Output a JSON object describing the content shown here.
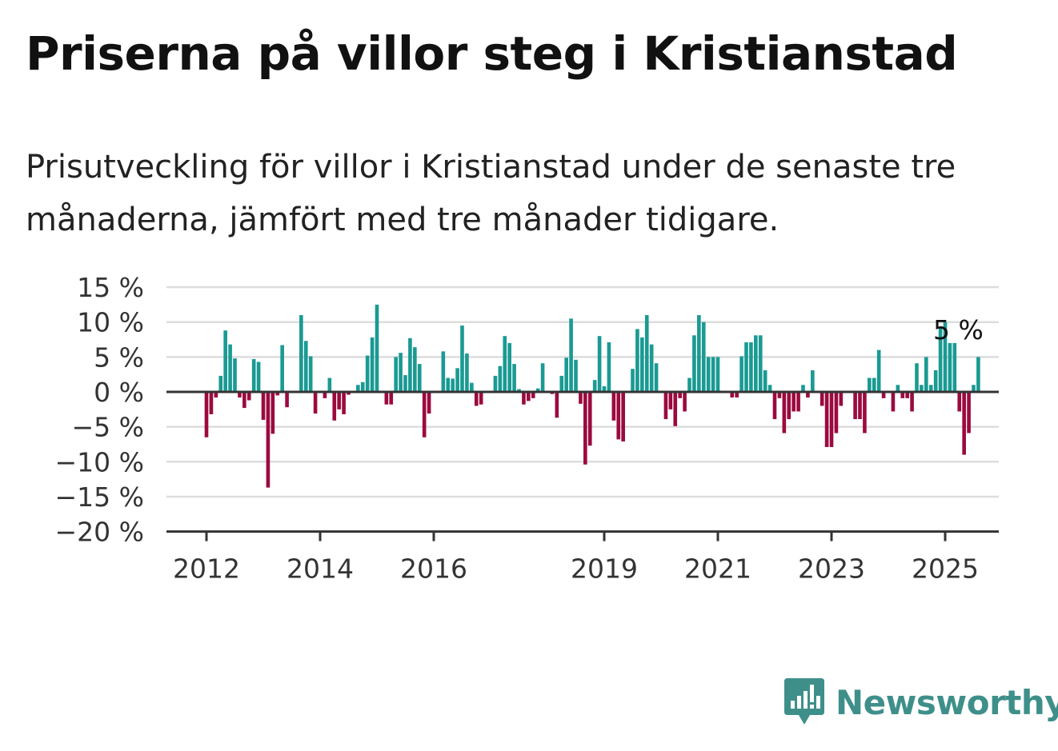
{
  "header": {
    "title": "Priserna på villor steg i Kristianstad",
    "subtitle": "Prisutveckling för villor i Kristianstad under de senaste tre månaderna, jämfört med tre månader tidigare."
  },
  "brand": {
    "name": "Newsworthy",
    "icon": "newsworthy-logo-icon",
    "color": "#3e8f8a"
  },
  "colors": {
    "positive": "#1a9a93",
    "negative": "#9b0a3f",
    "grid": "#dddddd",
    "axis": "#333333"
  },
  "chart_data": {
    "type": "bar",
    "x_start": "2012-01",
    "x_step": "1 month",
    "x_ticks": [
      "2012",
      "2014",
      "2016",
      "2019",
      "2021",
      "2023",
      "2025"
    ],
    "y_ticks": [
      "15 %",
      "10 %",
      "5 %",
      "0 %",
      "−5 %",
      "−10 %",
      "−15 %",
      "−20 %"
    ],
    "ylim": [
      -20,
      15
    ],
    "grid": true,
    "annotation": "5 %",
    "values": [
      -6.5,
      -3.2,
      -0.8,
      2.3,
      8.8,
      6.8,
      4.8,
      -0.8,
      -2.3,
      -1.2,
      4.7,
      4.3,
      -4.0,
      -13.7,
      -6.0,
      -0.5,
      6.7,
      -2.2,
      null,
      null,
      11.0,
      7.3,
      5.1,
      -3.1,
      null,
      -0.9,
      2.0,
      -4.1,
      -2.5,
      -3.2,
      -0.4,
      0.1,
      1.0,
      1.4,
      5.2,
      7.8,
      12.5,
      null,
      -1.8,
      -1.8,
      5.0,
      5.6,
      2.4,
      7.7,
      6.4,
      4.0,
      -6.5,
      -3.1,
      null,
      null,
      5.8,
      2.0,
      1.9,
      3.4,
      9.5,
      5.5,
      1.3,
      -2.0,
      -1.8,
      null,
      null,
      2.3,
      3.7,
      8.0,
      7.0,
      4.0,
      0.4,
      -1.8,
      -1.3,
      -0.9,
      0.5,
      4.1,
      null,
      -0.3,
      -3.7,
      2.3,
      4.9,
      10.5,
      4.6,
      -1.7,
      -10.4,
      -7.7,
      1.7,
      8.0,
      0.8,
      7.1,
      -4.1,
      -6.8,
      -7.1,
      null,
      3.3,
      9.0,
      7.8,
      11.0,
      6.8,
      4.1,
      null,
      -3.9,
      -2.5,
      -4.9,
      -0.9,
      -2.8,
      2.0,
      8.1,
      11.0,
      10.0,
      5.0,
      5.0,
      5.0,
      null,
      null,
      -0.8,
      -0.8,
      5.1,
      7.1,
      7.1,
      8.1,
      8.1,
      3.1,
      1.0,
      -3.9,
      -0.9,
      -5.9,
      -3.9,
      -2.8,
      -2.8,
      1.0,
      -0.8,
      3.1,
      null,
      -2.0,
      -7.9,
      -7.9,
      -5.9,
      -2.0,
      null,
      null,
      -3.9,
      -3.9,
      -5.9,
      2.0,
      2.0,
      6.0,
      -0.9,
      null,
      -2.8,
      1.0,
      -0.9,
      -0.9,
      -2.8,
      4.1,
      1.0,
      5.0,
      1.0,
      3.1,
      9.1,
      10.0,
      7.0,
      7.0,
      -2.8,
      -9.0,
      -5.9,
      1.0,
      5.0
    ]
  }
}
